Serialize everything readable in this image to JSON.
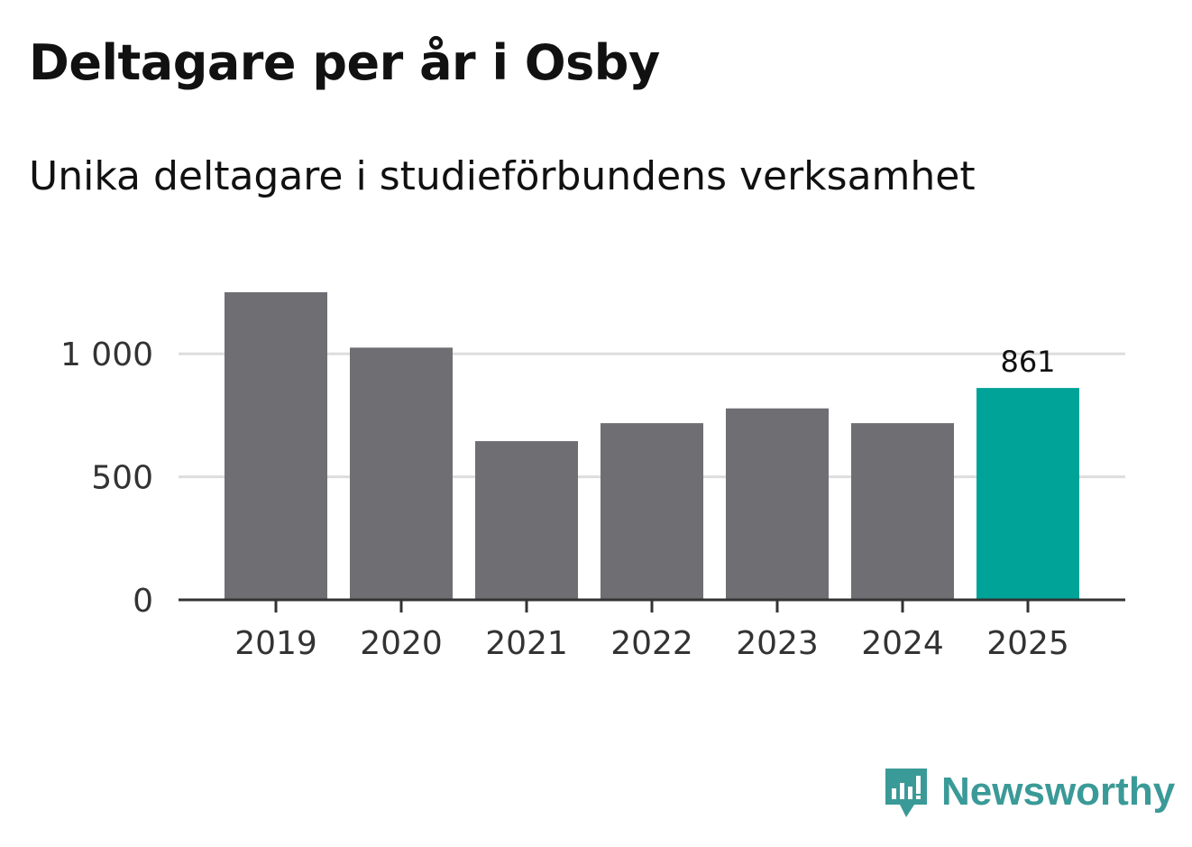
{
  "header": {
    "title": "Deltagare per år i Osby",
    "subtitle": "Unika deltagare i studieförbundens verksamhet"
  },
  "brand": {
    "name": "Newsworthy",
    "icon": "newsworthy-logo-icon",
    "color": "#3a9a97"
  },
  "chart_data": {
    "type": "bar",
    "title": "Deltagare per år i Osby",
    "subtitle": "Unika deltagare i studieförbundens verksamhet",
    "xlabel": "",
    "ylabel": "",
    "categories": [
      "2019",
      "2020",
      "2021",
      "2022",
      "2023",
      "2024",
      "2025"
    ],
    "values": [
      1250,
      1025,
      645,
      718,
      778,
      718,
      861
    ],
    "ylim": [
      0,
      1250
    ],
    "yticks": [
      0,
      500,
      1000
    ],
    "ytick_labels": [
      "0",
      "500",
      "1 000"
    ],
    "grid": true,
    "highlight_index": 6,
    "data_labels": [
      {
        "index": 6,
        "text": "861"
      }
    ],
    "colors": {
      "bar": "#6e6e73",
      "highlight": "#00a398",
      "grid": "#dddddd",
      "axis": "#333333",
      "tick_label": "#333333",
      "data_label": "#111111"
    }
  }
}
